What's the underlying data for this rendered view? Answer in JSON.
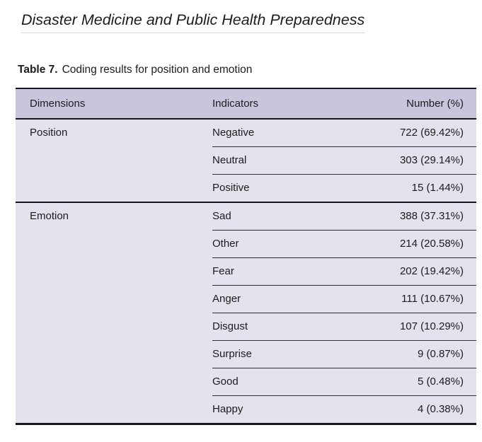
{
  "journal_header": {
    "title": "Disaster Medicine and Public Health Preparedness"
  },
  "table_caption": {
    "label": "Table 7.",
    "text": "Coding results for position and emotion"
  },
  "table": {
    "columns": [
      "Dimensions",
      "Indicators",
      "Number (%)"
    ],
    "groups": [
      {
        "dimension": "Position",
        "rows": [
          {
            "indicator": "Negative",
            "number": "722 (69.42%)"
          },
          {
            "indicator": "Neutral",
            "number": "303 (29.14%)"
          },
          {
            "indicator": "Positive",
            "number": "15 (1.44%)"
          }
        ]
      },
      {
        "dimension": "Emotion",
        "rows": [
          {
            "indicator": "Sad",
            "number": "388 (37.31%)"
          },
          {
            "indicator": "Other",
            "number": "214 (20.58%)"
          },
          {
            "indicator": "Fear",
            "number": "202 (19.42%)"
          },
          {
            "indicator": "Anger",
            "number": "111 (10.67%)"
          },
          {
            "indicator": "Disgust",
            "number": "107 (10.29%)"
          },
          {
            "indicator": "Surprise",
            "number": "9 (0.87%)"
          },
          {
            "indicator": "Good",
            "number": "5 (0.48%)"
          },
          {
            "indicator": "Happy",
            "number": "4 (0.38%)"
          }
        ]
      }
    ]
  },
  "colors": {
    "header_row_bg": "#c8c6dd",
    "body_row_bg": "#e3e2ed",
    "rule_dark": "#15151d",
    "rule_light": "#2e2e36",
    "text": "#1c1c1c"
  }
}
